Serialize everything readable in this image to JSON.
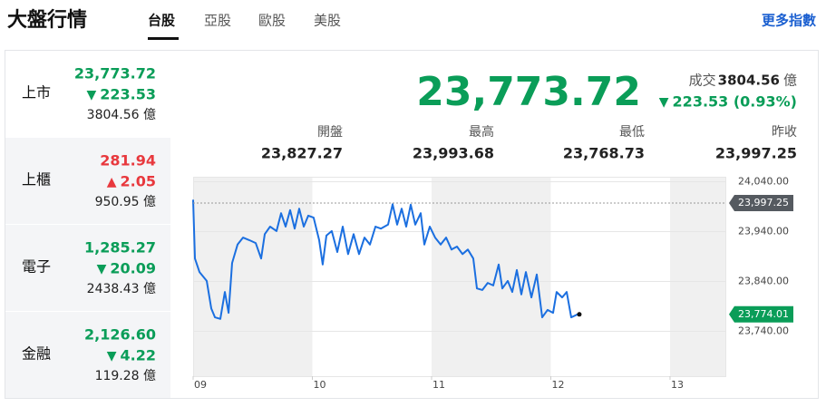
{
  "header": {
    "title": "大盤行情",
    "tabs": [
      "台股",
      "亞股",
      "歐股",
      "美股"
    ],
    "more": "更多指數"
  },
  "sidebar": [
    {
      "name": "上市",
      "price": "23,773.72",
      "arrow": "▼",
      "change": "223.53",
      "volume": "3804.56 億",
      "color": "#0a9d58"
    },
    {
      "name": "上櫃",
      "price": "281.94",
      "arrow": "▲",
      "change": "2.05",
      "volume": "950.95 億",
      "color": "#e8383d"
    },
    {
      "name": "電子",
      "price": "1,285.27",
      "arrow": "▼",
      "change": "20.09",
      "volume": "2438.43 億",
      "color": "#0a9d58"
    },
    {
      "name": "金融",
      "price": "2,126.60",
      "arrow": "▼",
      "change": "4.22",
      "volume": "119.28 億",
      "color": "#0a9d58"
    }
  ],
  "quote": {
    "price": "23,773.72",
    "volume_label": "成交",
    "volume": "3804.56",
    "volume_unit": "億",
    "arrow": "▼",
    "change": "223.53 (0.93%)",
    "color": "#0a9d58",
    "stats": [
      {
        "label": "開盤",
        "value": "23,827.27"
      },
      {
        "label": "最高",
        "value": "23,993.68"
      },
      {
        "label": "最低",
        "value": "23,768.73"
      },
      {
        "label": "昨收",
        "value": "23,997.25"
      }
    ]
  },
  "chart_data": {
    "type": "line",
    "color": "#1b6fe0",
    "grid": true,
    "x": [
      9.0,
      9.015,
      9.053,
      9.114,
      9.152,
      9.183,
      9.228,
      9.266,
      9.297,
      9.327,
      9.373,
      9.418,
      9.471,
      9.525,
      9.57,
      9.601,
      9.646,
      9.7,
      9.738,
      9.776,
      9.814,
      9.852,
      9.89,
      9.928,
      9.966,
      10.011,
      10.057,
      10.087,
      10.118,
      10.163,
      10.209,
      10.255,
      10.3,
      10.346,
      10.392,
      10.437,
      10.483,
      10.529,
      10.574,
      10.635,
      10.673,
      10.711,
      10.749,
      10.787,
      10.825,
      10.863,
      10.909,
      10.939,
      10.985,
      11.03,
      11.076,
      11.122,
      11.167,
      11.213,
      11.259,
      11.304,
      11.35,
      11.38,
      11.426,
      11.471,
      11.517,
      11.563,
      11.593,
      11.639,
      11.677,
      11.715,
      11.753,
      11.791,
      11.837,
      11.882,
      11.928,
      11.973,
      12.019,
      12.049,
      12.095,
      12.133,
      12.171,
      12.224
    ],
    "values": [
      24004,
      23886,
      23859,
      23841,
      23786,
      23768,
      23765,
      23819,
      23777,
      23877,
      23914,
      23928,
      23923,
      23917,
      23886,
      23935,
      23950,
      23941,
      23977,
      23950,
      23983,
      23946,
      23986,
      23950,
      23972,
      23968,
      23923,
      23874,
      23932,
      23941,
      23899,
      23950,
      23895,
      23935,
      23895,
      23928,
      23914,
      23950,
      23946,
      23954,
      23995,
      23954,
      23986,
      23950,
      23994,
      23954,
      23977,
      23914,
      23950,
      23928,
      23914,
      23928,
      23904,
      23910,
      23895,
      23904,
      23886,
      23826,
      23823,
      23837,
      23832,
      23874,
      23826,
      23841,
      23819,
      23863,
      23814,
      23859,
      23808,
      23854,
      23768,
      23783,
      23777,
      23819,
      23808,
      23819,
      23768,
      23774
    ],
    "xlim": [
      9,
      13.464
    ],
    "xticks": [
      {
        "value": 9,
        "label": "09"
      },
      {
        "value": 10,
        "label": "10"
      },
      {
        "value": 11,
        "label": "11"
      },
      {
        "value": 12,
        "label": "12"
      },
      {
        "value": 13,
        "label": "13"
      }
    ],
    "ylim": [
      23650,
      24050
    ],
    "yticks": [
      {
        "value": 23740,
        "label": "23,740.00"
      },
      {
        "value": 23840,
        "label": "23,840.00"
      },
      {
        "value": 23940,
        "label": "23,940.00"
      },
      {
        "value": 24040,
        "label": "24,040.00"
      }
    ],
    "reference": {
      "value": 23997.25,
      "label": "23,997.25",
      "color": "#555a60"
    },
    "last": {
      "value": 23774.01,
      "label": "23,774.01",
      "color": "#0a9d58"
    }
  }
}
